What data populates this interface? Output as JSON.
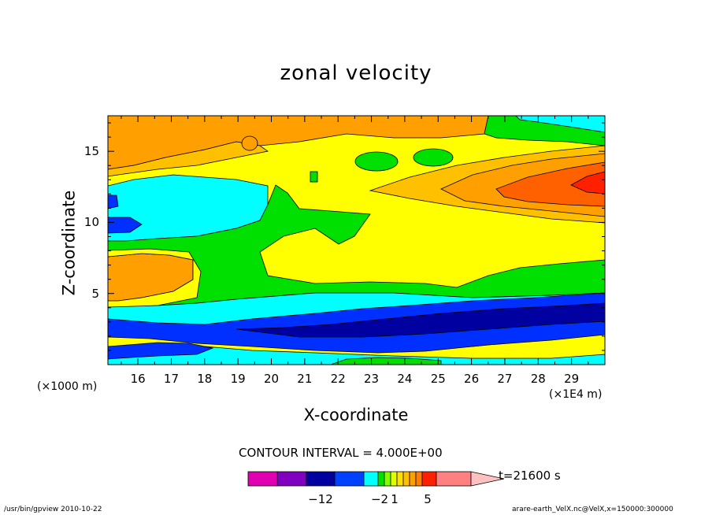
{
  "chart_data": {
    "type": "heatmap",
    "title": "zonal velocity",
    "xlabel": "X-coordinate",
    "ylabel": "Z-coordinate",
    "x_unit_left": "(×1000 m)",
    "x_unit_right": "(×1E4 m)",
    "x_ticks": [
      "16",
      "17",
      "18",
      "19",
      "20",
      "21",
      "22",
      "23",
      "24",
      "25",
      "26",
      "27",
      "28",
      "29"
    ],
    "y_ticks": [
      "5",
      "10",
      "15"
    ],
    "xlim": [
      15.1,
      30.0
    ],
    "ylim": [
      0.0,
      17.5
    ],
    "contour_interval": "CONTOUR INTERVAL = 4.000E+00",
    "time_label": "t=21600 s",
    "colorbar": {
      "tick_labels": [
        "−12",
        "−2",
        "1",
        "5"
      ],
      "levels": [
        -20,
        -16,
        -12,
        -8,
        -4,
        -2,
        -1,
        0,
        1,
        2,
        3,
        4,
        5,
        9,
        13
      ],
      "colors": [
        "#e000b0",
        "#8000c0",
        "#0000a0",
        "#0040ff",
        "#00ffff",
        "#00e000",
        "#80ff00",
        "#e0ff00",
        "#ffe000",
        "#ffc000",
        "#ffa000",
        "#ff8000",
        "#ff2000",
        "#ff8080",
        "#ffc0c0"
      ]
    },
    "regions": [
      {
        "name": "top-left",
        "approx_value": 3.5,
        "color": "#ffa000"
      },
      {
        "name": "upper-middle",
        "approx_value": 1.5,
        "color": "#ffff00"
      },
      {
        "name": "right-core",
        "approx_value": 5.0,
        "color": "#ff4000"
      },
      {
        "name": "middle-band",
        "approx_value": -1.5,
        "color": "#00e000"
      },
      {
        "name": "left-mid",
        "approx_value": -3.0,
        "color": "#00ffff"
      },
      {
        "name": "lower-band",
        "approx_value": -8.0,
        "color": "#0030ff"
      },
      {
        "name": "bottom-strip",
        "approx_value": -3.0,
        "color": "#00ffff"
      }
    ]
  },
  "footer": {
    "left": "/usr/bin/gpview  2010-10-22",
    "right": "arare-earth_VelX.nc@VelX,x=150000:300000"
  }
}
